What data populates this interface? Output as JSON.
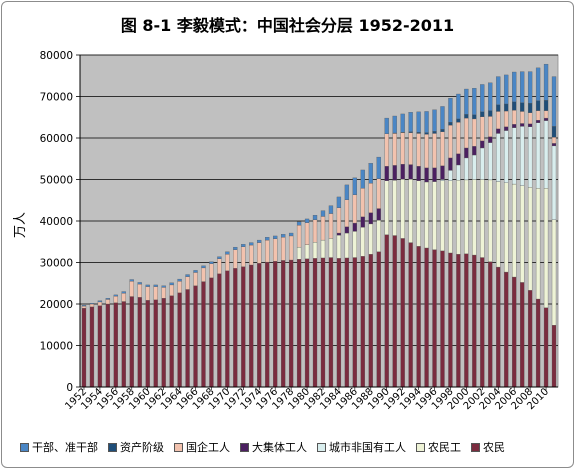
{
  "chart_data": {
    "type": "bar",
    "stacked": true,
    "title": "图 8-1 李毅模式：中国社会分层 1952-2011",
    "ylabel": "万人",
    "ylim": [
      0,
      80000
    ],
    "yticks": [
      0,
      10000,
      20000,
      30000,
      40000,
      50000,
      60000,
      70000,
      80000
    ],
    "grid": true,
    "legend_position": "bottom",
    "x": [
      1952,
      1953,
      1954,
      1955,
      1956,
      1957,
      1958,
      1959,
      1960,
      1961,
      1962,
      1963,
      1964,
      1965,
      1966,
      1967,
      1968,
      1969,
      1970,
      1971,
      1972,
      1973,
      1974,
      1975,
      1976,
      1977,
      1978,
      1979,
      1980,
      1981,
      1982,
      1983,
      1984,
      1985,
      1986,
      1987,
      1988,
      1989,
      1990,
      1991,
      1992,
      1993,
      1994,
      1995,
      1996,
      1997,
      1998,
      1999,
      2000,
      2001,
      2002,
      2003,
      2004,
      2005,
      2006,
      2007,
      2008,
      2009,
      2010,
      2011
    ],
    "xtick_labels": [
      "1952",
      "1954",
      "1956",
      "1958",
      "1960",
      "1962",
      "1964",
      "1966",
      "1968",
      "1970",
      "1972",
      "1974",
      "1976",
      "1978",
      "1980",
      "1982",
      "1984",
      "1986",
      "1988",
      "1990",
      "1992",
      "1994",
      "1996",
      "1998",
      "2000",
      "2002",
      "2004",
      "2006",
      "2008",
      "2010"
    ],
    "series": [
      {
        "name": "农民",
        "color": "#7b2c3f",
        "values": [
          19000,
          19300,
          19600,
          20000,
          20300,
          20600,
          21800,
          21600,
          20900,
          21000,
          21400,
          22000,
          22700,
          23500,
          24400,
          25400,
          26300,
          27300,
          28000,
          28600,
          29000,
          29400,
          29800,
          30100,
          30300,
          30500,
          30600,
          30800,
          30900,
          31000,
          31100,
          31200,
          31000,
          31100,
          31200,
          31500,
          32000,
          32600,
          36700,
          36500,
          35800,
          34800,
          33900,
          33500,
          33100,
          32800,
          32300,
          32000,
          32100,
          31800,
          31200,
          30200,
          28900,
          27700,
          26500,
          25200,
          23300,
          21200,
          19100,
          14900
        ]
      },
      {
        "name": "农民工",
        "color": "#eef3d6",
        "values": [
          0,
          0,
          0,
          0,
          0,
          0,
          0,
          0,
          0,
          0,
          0,
          0,
          0,
          0,
          0,
          0,
          0,
          0,
          0,
          0,
          0,
          0,
          0,
          0,
          0,
          0,
          0,
          2900,
          3400,
          3900,
          4300,
          4600,
          5600,
          6000,
          6300,
          7000,
          7300,
          7600,
          13000,
          13300,
          14300,
          15300,
          15800,
          15900,
          16400,
          16900,
          17400,
          17800,
          17800,
          18200,
          18800,
          19700,
          20600,
          21500,
          22400,
          23300,
          24800,
          26700,
          28800,
          25400
        ]
      },
      {
        "name": "城市非国有工人",
        "color": "#d9eeee",
        "values": [
          0,
          0,
          0,
          0,
          0,
          0,
          0,
          0,
          0,
          0,
          0,
          0,
          0,
          0,
          0,
          0,
          0,
          0,
          0,
          0,
          0,
          0,
          0,
          0,
          0,
          0,
          0,
          0,
          0,
          0,
          0,
          0,
          0,
          0,
          0,
          0,
          0,
          0,
          0,
          0,
          0,
          0,
          0,
          0,
          0,
          300,
          2500,
          3700,
          5300,
          5900,
          7600,
          9000,
          11600,
          12600,
          13600,
          14300,
          14600,
          15800,
          16300,
          17800
        ]
      },
      {
        "name": "大集体工人",
        "color": "#4b2060",
        "values": [
          0,
          0,
          0,
          0,
          0,
          0,
          0,
          0,
          0,
          0,
          0,
          0,
          0,
          0,
          0,
          0,
          0,
          0,
          0,
          0,
          0,
          0,
          0,
          0,
          0,
          0,
          0,
          0,
          0,
          0,
          0,
          0,
          500,
          1500,
          2000,
          2500,
          2700,
          2800,
          3500,
          3600,
          3600,
          3500,
          3500,
          3400,
          3300,
          3300,
          3000,
          2700,
          2400,
          2100,
          1700,
          1400,
          1100,
          900,
          800,
          700,
          700,
          600,
          600,
          600
        ]
      },
      {
        "name": "国企工人",
        "color": "#f2c2ae",
        "values": [
          500,
          700,
          900,
          1100,
          1600,
          2000,
          3700,
          3200,
          3300,
          3200,
          2600,
          2600,
          2800,
          3100,
          3200,
          3300,
          3400,
          3600,
          4000,
          4500,
          4800,
          4800,
          5000,
          5300,
          5400,
          5600,
          5800,
          5300,
          5300,
          5400,
          5700,
          6000,
          6100,
          6500,
          6800,
          6900,
          7100,
          7200,
          7800,
          7700,
          7600,
          7700,
          7900,
          8100,
          8300,
          8200,
          7900,
          7600,
          7200,
          6600,
          5800,
          4900,
          4200,
          3800,
          3400,
          2900,
          2700,
          2300,
          1800,
          1500
        ]
      },
      {
        "name": "资产阶级",
        "color": "#1f4e79",
        "values": [
          0,
          0,
          0,
          0,
          0,
          0,
          0,
          0,
          0,
          0,
          0,
          0,
          0,
          0,
          0,
          0,
          0,
          0,
          0,
          0,
          0,
          0,
          0,
          0,
          0,
          0,
          0,
          0,
          0,
          0,
          0,
          0,
          0,
          0,
          0,
          0,
          0,
          0,
          0,
          100,
          100,
          200,
          300,
          400,
          500,
          600,
          700,
          800,
          900,
          1000,
          1200,
          1400,
          1600,
          1700,
          2000,
          2100,
          2300,
          2400,
          2500,
          2600
        ]
      },
      {
        "name": "干部、准干部",
        "color": "#4a86c5",
        "values": [
          200,
          200,
          300,
          300,
          300,
          400,
          400,
          400,
          400,
          400,
          400,
          500,
          500,
          500,
          500,
          500,
          500,
          500,
          600,
          600,
          600,
          600,
          600,
          700,
          700,
          700,
          700,
          800,
          900,
          1100,
          1400,
          1900,
          2600,
          3600,
          4100,
          4400,
          4800,
          5200,
          3800,
          4100,
          4400,
          4700,
          4900,
          5100,
          5200,
          5500,
          5800,
          6000,
          6100,
          6400,
          6600,
          6700,
          6800,
          7000,
          7200,
          7500,
          7600,
          7900,
          8700,
          12000
        ]
      }
    ]
  }
}
